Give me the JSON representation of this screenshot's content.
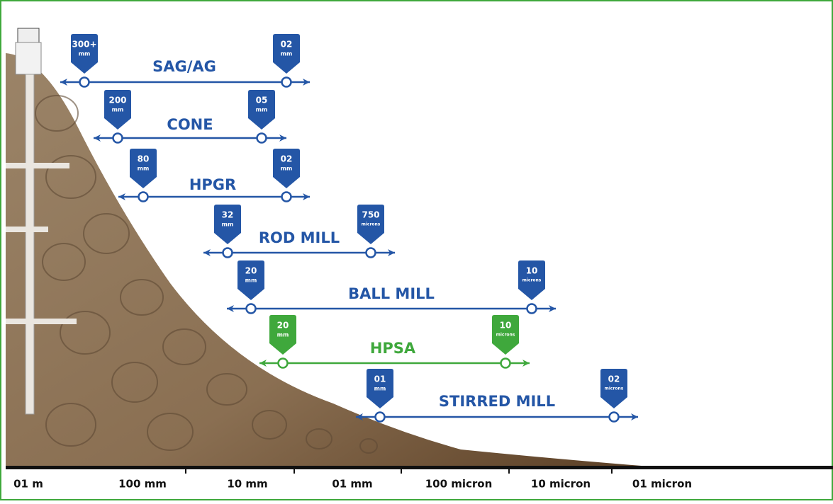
{
  "machines": [
    {
      "name": "SAG/AG",
      "color": "#2456a6",
      "start": {
        "value": "300+",
        "unit": "mm"
      },
      "end": {
        "value": "02",
        "unit": "mm"
      }
    },
    {
      "name": "CONE",
      "color": "#2456a6",
      "start": {
        "value": "200",
        "unit": "mm"
      },
      "end": {
        "value": "05",
        "unit": "mm"
      }
    },
    {
      "name": "HPGR",
      "color": "#2456a6",
      "start": {
        "value": "80",
        "unit": "mm"
      },
      "end": {
        "value": "02",
        "unit": "mm"
      }
    },
    {
      "name": "ROD MILL",
      "color": "#2456a6",
      "start": {
        "value": "32",
        "unit": "mm"
      },
      "end": {
        "value": "750",
        "unit": "microns"
      }
    },
    {
      "name": "BALL MILL",
      "color": "#2456a6",
      "start": {
        "value": "20",
        "unit": "mm"
      },
      "end": {
        "value": "10",
        "unit": "microns"
      }
    },
    {
      "name": "HPSA",
      "color": "#3fa83c",
      "start": {
        "value": "20",
        "unit": "mm"
      },
      "end": {
        "value": "10",
        "unit": "microns"
      }
    },
    {
      "name": "STIRRED MILL",
      "color": "#2456a6",
      "start": {
        "value": "01",
        "unit": "mm"
      },
      "end": {
        "value": "02",
        "unit": "microns"
      }
    }
  ],
  "scale": [
    "01 m",
    "100 mm",
    "10 mm",
    "01 mm",
    "100 micron",
    "10 micron",
    "01 micron"
  ]
}
